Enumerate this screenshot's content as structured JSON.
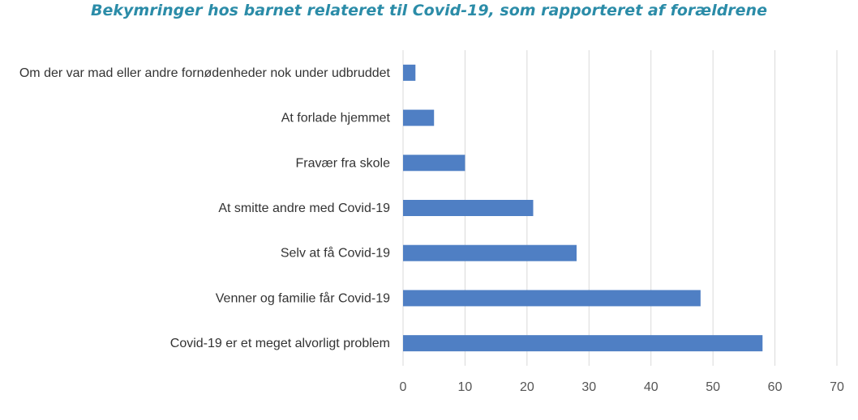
{
  "chart_data": {
    "type": "bar",
    "orientation": "horizontal",
    "title": "Bekymringer hos barnet relateret til Covid-19, som rapporteret af forældrene",
    "categories": [
      "Om der var mad eller andre fornødenheder nok under udbruddet",
      "At forlade hjemmet",
      "Fravær fra skole",
      "At smitte andre med Covid-19",
      "Selv at få Covid-19",
      "Venner og familie får Covid-19",
      "Covid-19 er et meget alvorligt problem"
    ],
    "values": [
      2,
      5,
      10,
      21,
      28,
      48,
      58
    ],
    "xlim": [
      0,
      70
    ],
    "xticks": [
      "0",
      "10",
      "20",
      "30",
      "40",
      "50",
      "60",
      "70"
    ],
    "grid": true,
    "legend": "none",
    "colors": {
      "bar": "#4f7fc4",
      "title": "#2b8ca8",
      "grid": "#d9d9d9"
    }
  }
}
